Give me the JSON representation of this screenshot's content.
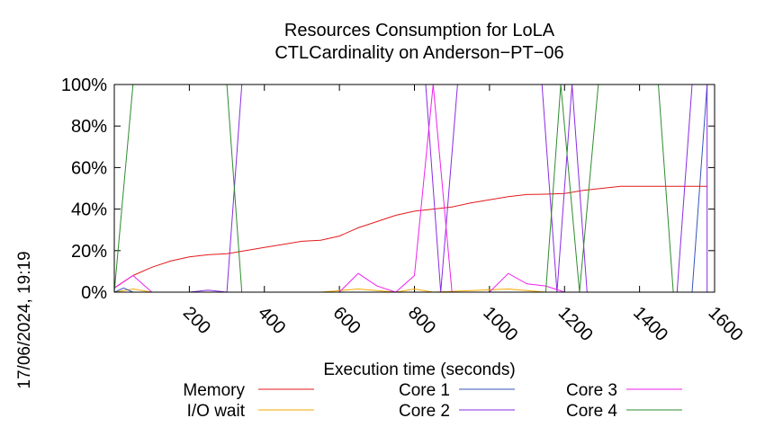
{
  "chart_data": {
    "type": "line",
    "title": "Resources Consumption for LoLA",
    "subtitle": "CTLCardinality on Anderson−PT−06",
    "xlabel": "Execution time (seconds)",
    "ylabel": "",
    "timestamp": "17/06/2024, 19:19",
    "xlim": [
      0,
      1600
    ],
    "ylim": [
      0,
      100
    ],
    "x_ticks": [
      {
        "value": 200,
        "label": "200"
      },
      {
        "value": 400,
        "label": "400"
      },
      {
        "value": 600,
        "label": "600"
      },
      {
        "value": 800,
        "label": "800"
      },
      {
        "value": 1000,
        "label": "1000"
      },
      {
        "value": 1200,
        "label": "1200"
      },
      {
        "value": 1400,
        "label": "1400"
      },
      {
        "value": 1600,
        "label": "1600"
      }
    ],
    "y_ticks": [
      {
        "value": 0,
        "label": "0%"
      },
      {
        "value": 20,
        "label": "20%"
      },
      {
        "value": 40,
        "label": "40%"
      },
      {
        "value": 60,
        "label": "60%"
      },
      {
        "value": 80,
        "label": "80%"
      },
      {
        "value": 100,
        "label": "100%"
      }
    ],
    "grid": false,
    "legend_position": "bottom",
    "series": [
      {
        "name": "Memory",
        "color": "#e41a1c",
        "points": [
          [
            0,
            2
          ],
          [
            50,
            8
          ],
          [
            100,
            12
          ],
          [
            150,
            15
          ],
          [
            200,
            17
          ],
          [
            250,
            18
          ],
          [
            300,
            18.5
          ],
          [
            350,
            20
          ],
          [
            400,
            21.5
          ],
          [
            450,
            23
          ],
          [
            500,
            24.5
          ],
          [
            550,
            25
          ],
          [
            600,
            27
          ],
          [
            650,
            31
          ],
          [
            700,
            34
          ],
          [
            750,
            37
          ],
          [
            800,
            39
          ],
          [
            850,
            40
          ],
          [
            900,
            41
          ],
          [
            950,
            43
          ],
          [
            1000,
            44.5
          ],
          [
            1050,
            46
          ],
          [
            1100,
            47
          ],
          [
            1150,
            47.2
          ],
          [
            1200,
            47.5
          ],
          [
            1250,
            49
          ],
          [
            1300,
            50
          ],
          [
            1350,
            51
          ],
          [
            1400,
            51
          ],
          [
            1450,
            51
          ],
          [
            1500,
            51
          ],
          [
            1550,
            51
          ],
          [
            1580,
            51
          ]
        ]
      },
      {
        "name": "I/O wait",
        "color": "#f0a800",
        "points": [
          [
            0,
            0
          ],
          [
            50,
            1.5
          ],
          [
            100,
            0
          ],
          [
            550,
            0
          ],
          [
            650,
            1.5
          ],
          [
            750,
            0
          ],
          [
            800,
            1.5
          ],
          [
            850,
            0
          ],
          [
            1050,
            1.5
          ],
          [
            1150,
            0
          ],
          [
            1580,
            0
          ]
        ]
      },
      {
        "name": "Core 1",
        "color": "#3355bb",
        "points": [
          [
            0,
            0
          ],
          [
            25,
            2
          ],
          [
            50,
            0
          ],
          [
            1480,
            0
          ],
          [
            1540,
            0
          ],
          [
            1580,
            100
          ]
        ]
      },
      {
        "name": "Core 2",
        "color": "#8a2be2",
        "points": [
          [
            0,
            0
          ],
          [
            200,
            0
          ],
          [
            250,
            1
          ],
          [
            300,
            0
          ],
          [
            340,
            100
          ],
          [
            830,
            100
          ],
          [
            870,
            0
          ],
          [
            915,
            100
          ],
          [
            1140,
            100
          ],
          [
            1180,
            0
          ],
          [
            1220,
            100
          ],
          [
            1260,
            0
          ],
          [
            1300,
            0
          ],
          [
            1500,
            0
          ],
          [
            1540,
            100
          ],
          [
            1580,
            100
          ],
          [
            1580,
            0
          ]
        ]
      },
      {
        "name": "Core 3",
        "color": "#ee22ee",
        "points": [
          [
            0,
            2
          ],
          [
            50,
            8
          ],
          [
            100,
            0
          ],
          [
            550,
            0
          ],
          [
            600,
            0
          ],
          [
            650,
            9
          ],
          [
            700,
            3
          ],
          [
            750,
            0
          ],
          [
            800,
            8
          ],
          [
            850,
            100
          ],
          [
            900,
            0
          ],
          [
            1000,
            0
          ],
          [
            1050,
            9
          ],
          [
            1100,
            4
          ],
          [
            1150,
            3
          ],
          [
            1200,
            0
          ],
          [
            1580,
            0
          ]
        ]
      },
      {
        "name": "Core 4",
        "color": "#2e8b2e",
        "points": [
          [
            0,
            0
          ],
          [
            50,
            100
          ],
          [
            300,
            100
          ],
          [
            340,
            0
          ],
          [
            1150,
            0
          ],
          [
            1190,
            100
          ],
          [
            1240,
            0
          ],
          [
            1290,
            100
          ],
          [
            1450,
            100
          ],
          [
            1490,
            0
          ],
          [
            1580,
            0
          ]
        ]
      }
    ]
  }
}
